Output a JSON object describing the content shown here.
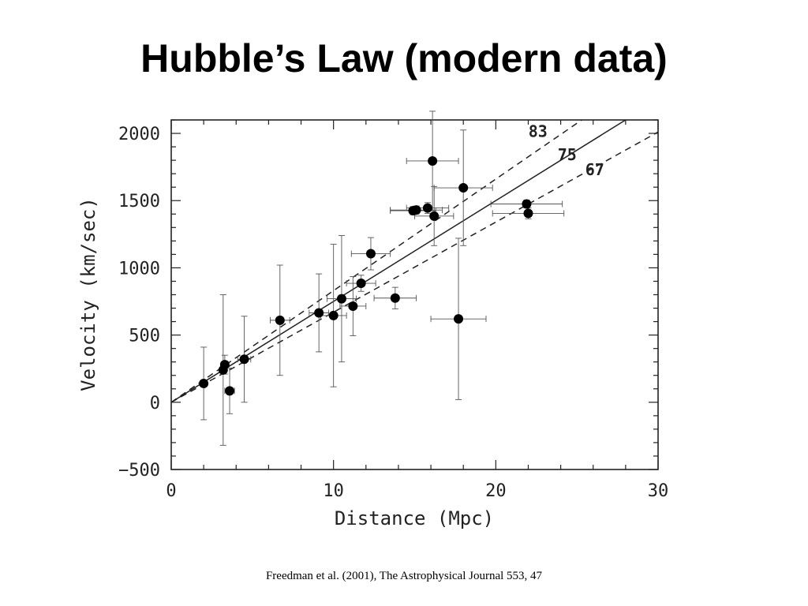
{
  "slide": {
    "title": "Hubble’s Law (modern data)",
    "caption": "Freedman et al. (2001), The Astrophysical Journal 553, 47"
  },
  "chart_data": {
    "type": "scatter",
    "xlabel": "Distance (Mpc)",
    "ylabel": "Velocity (km/sec)",
    "xlim": [
      0,
      30
    ],
    "ylim": [
      -500,
      2100
    ],
    "x_ticks": [
      0,
      10,
      20,
      30
    ],
    "y_ticks": [
      -500,
      0,
      500,
      1000,
      1500,
      2000
    ],
    "grid": false,
    "points": [
      {
        "x": 2.0,
        "y": 140,
        "xerr": 0.2,
        "yerr": 270
      },
      {
        "x": 3.2,
        "y": 240,
        "xerr": 0.2,
        "yerr": 560
      },
      {
        "x": 3.3,
        "y": 280,
        "xerr": 0.2,
        "yerr": 70
      },
      {
        "x": 3.6,
        "y": 85,
        "xerr": 0.3,
        "yerr": 170
      },
      {
        "x": 4.5,
        "y": 320,
        "xerr": 0.4,
        "yerr": 320
      },
      {
        "x": 6.7,
        "y": 610,
        "xerr": 0.6,
        "yerr": 410
      },
      {
        "x": 9.1,
        "y": 665,
        "xerr": 0.6,
        "yerr": 290
      },
      {
        "x": 10.0,
        "y": 645,
        "xerr": 0.8,
        "yerr": 530
      },
      {
        "x": 10.5,
        "y": 770,
        "xerr": 0.9,
        "yerr": 470
      },
      {
        "x": 11.2,
        "y": 715,
        "xerr": 0.8,
        "yerr": 220
      },
      {
        "x": 11.7,
        "y": 885,
        "xerr": 0.9,
        "yerr": 60
      },
      {
        "x": 12.3,
        "y": 1105,
        "xerr": 1.2,
        "yerr": 120
      },
      {
        "x": 13.8,
        "y": 775,
        "xerr": 1.3,
        "yerr": 80
      },
      {
        "x": 14.9,
        "y": 1425,
        "xerr": 1.4,
        "yerr": 30
      },
      {
        "x": 15.1,
        "y": 1430,
        "xerr": 1.6,
        "yerr": 30
      },
      {
        "x": 15.8,
        "y": 1445,
        "xerr": 1.3,
        "yerr": 40
      },
      {
        "x": 16.1,
        "y": 1795,
        "xerr": 1.6,
        "yerr": 370
      },
      {
        "x": 16.2,
        "y": 1385,
        "xerr": 1.2,
        "yerr": 220
      },
      {
        "x": 17.7,
        "y": 620,
        "xerr": 1.7,
        "yerr": 600
      },
      {
        "x": 18.0,
        "y": 1595,
        "xerr": 1.8,
        "yerr": 430
      },
      {
        "x": 21.9,
        "y": 1475,
        "xerr": 2.2,
        "yerr": 30
      },
      {
        "x": 22.0,
        "y": 1405,
        "xerr": 2.2,
        "yerr": 40
      }
    ],
    "fit_lines": [
      {
        "label": "83",
        "slope": 83,
        "style": "dashed"
      },
      {
        "label": "75",
        "slope": 75,
        "style": "solid"
      },
      {
        "label": "67",
        "slope": 67,
        "style": "dashed"
      }
    ]
  }
}
